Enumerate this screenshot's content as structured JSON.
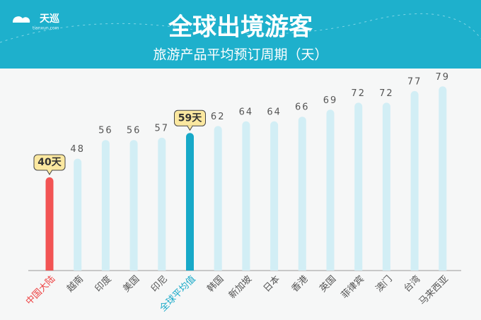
{
  "logo": {
    "name": "天巡",
    "site": "tianxun.com"
  },
  "chart_data": {
    "type": "bar",
    "title": "全球出境游客",
    "subtitle": "旅游产品平均预订周期（天）",
    "categories": [
      "中国大陆",
      "越南",
      "印度",
      "美国",
      "印尼",
      "全球平均值",
      "韩国",
      "新加坡",
      "日本",
      "香港",
      "英国",
      "菲律宾",
      "澳门",
      "台湾",
      "马来西亚"
    ],
    "values": [
      40,
      48,
      56,
      56,
      57,
      59,
      62,
      64,
      64,
      66,
      69,
      72,
      72,
      77,
      79
    ],
    "value_labels": [
      "40天",
      "48",
      "56",
      "56",
      "57",
      "59天",
      "62",
      "64",
      "64",
      "66",
      "69",
      "72",
      "72",
      "77",
      "79"
    ],
    "colors": [
      "#f25454",
      "#d2eef5",
      "#d2eef5",
      "#d2eef5",
      "#d2eef5",
      "#17a9c8",
      "#d2eef5",
      "#d2eef5",
      "#d2eef5",
      "#d2eef5",
      "#d2eef5",
      "#d2eef5",
      "#d2eef5",
      "#d2eef5",
      "#d2eef5"
    ],
    "label_colors": [
      "#ee4444",
      "#555555",
      "#555555",
      "#555555",
      "#555555",
      "#17a9c8",
      "#555555",
      "#555555",
      "#555555",
      "#555555",
      "#555555",
      "#555555",
      "#555555",
      "#555555",
      "#555555"
    ],
    "highlight": [
      0,
      5
    ]
  }
}
